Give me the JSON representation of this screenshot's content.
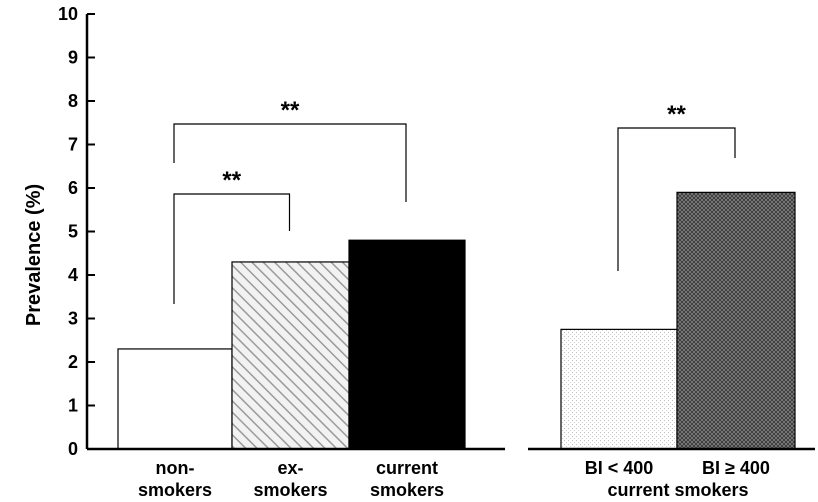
{
  "chart_data": {
    "type": "bar",
    "ylabel": "Prevalence (%)",
    "ylim": [
      0,
      10
    ],
    "yticks": [
      "0",
      "1",
      "2",
      "3",
      "4",
      "5",
      "6",
      "7",
      "8",
      "9",
      "10"
    ],
    "grid": false,
    "panels": [
      {
        "categories": [
          [
            "non-",
            "smokers"
          ],
          [
            "ex-",
            "smokers"
          ],
          [
            "current",
            "smokers"
          ]
        ],
        "values": [
          2.3,
          4.3,
          4.8
        ],
        "fills": [
          "white",
          "diagonal-hatch",
          "black"
        ],
        "group_label": "",
        "significance": [
          {
            "from": 0,
            "to": 1,
            "label": "**"
          },
          {
            "from": 0,
            "to": 2,
            "label": "**"
          }
        ]
      },
      {
        "categories": [
          [
            "BI < 400"
          ],
          [
            "BI ≥ 400"
          ]
        ],
        "values": [
          2.75,
          5.9
        ],
        "fills": [
          "light-dots",
          "dark-crosshatch"
        ],
        "group_label": "current smokers",
        "significance": [
          {
            "from": 0,
            "to": 1,
            "label": "**"
          }
        ]
      }
    ],
    "colors": {
      "ink": "#000000",
      "hatch_gray": "#9a9a9a",
      "dot_gray": "#bdbdbd",
      "cross_dark": "#555555"
    }
  }
}
